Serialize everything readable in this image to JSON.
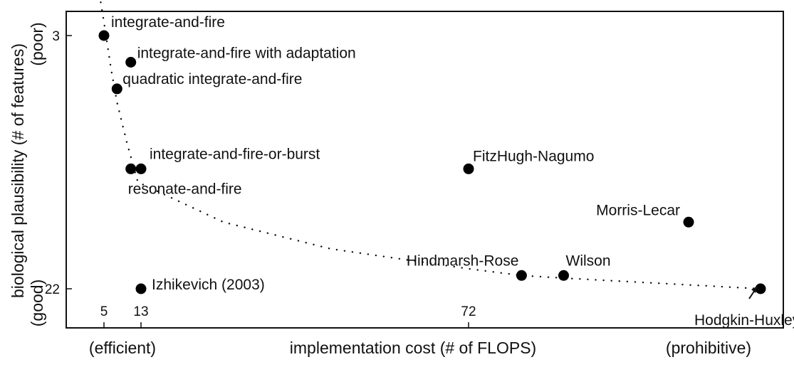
{
  "chart_data": {
    "type": "scatter",
    "title": "",
    "xlabel": "implementation cost (# of FLOPS)",
    "ylabel": "biological plausibility (# of features)",
    "x_annotations": {
      "left": "(efficient)",
      "right": "(prohibitive)"
    },
    "y_annotations": {
      "top": "(poor)",
      "bottom": "(good)"
    },
    "x_ticks": [
      "5",
      "13",
      "72"
    ],
    "y_ticks": [
      "3",
      "22"
    ],
    "x_tick_values": [
      5,
      13,
      72
    ],
    "y_tick_values": [
      3,
      22
    ],
    "xlim": [
      0,
      1200
    ],
    "ylim": [
      0,
      25
    ],
    "x_scale": "log",
    "grid": false,
    "points": [
      {
        "name": "integrate-and-fire",
        "x": 5,
        "y": 3
      },
      {
        "name": "integrate-and-fire with adaptation",
        "x": 10,
        "y": 5
      },
      {
        "name": "quadratic integrate-and-fire",
        "x": 7,
        "y": 7
      },
      {
        "name": "integrate-and-fire-or-burst",
        "x": 13,
        "y": 13
      },
      {
        "name": "resonate-and-fire",
        "x": 10,
        "y": 13
      },
      {
        "name": "FitzHugh-Nagumo",
        "x": 72,
        "y": 13
      },
      {
        "name": "Morris-Lecar",
        "x": 600,
        "y": 17
      },
      {
        "name": "Izhikevich (2003)",
        "x": 13,
        "y": 22
      },
      {
        "name": "Hindmarsh-Rose",
        "x": 120,
        "y": 21
      },
      {
        "name": "Wilson",
        "x": 180,
        "y": 21
      },
      {
        "name": "Hodgkin-Huxley",
        "x": 1200,
        "y": 22
      }
    ],
    "trend_line": {
      "style": "dotted",
      "x": [
        4.6,
        5,
        6,
        7,
        9,
        12,
        20,
        35,
        72,
        120,
        180,
        1200,
        1300
      ],
      "y": [
        0.5,
        2,
        5.5,
        8,
        11,
        14,
        17,
        19,
        20.5,
        21,
        21.2,
        22,
        22
      ]
    }
  }
}
